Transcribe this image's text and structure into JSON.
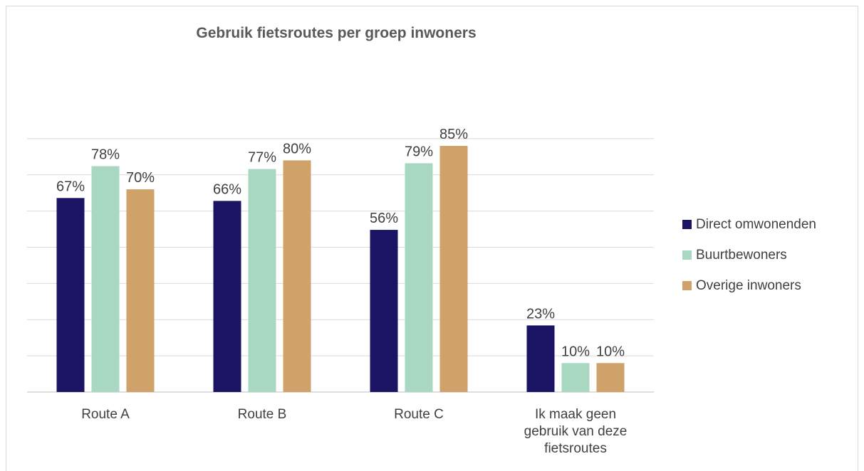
{
  "chart_data": {
    "type": "bar",
    "title": "Gebruik fietsroutes per groep inwoners",
    "categories": [
      [
        "Route A"
      ],
      [
        "Route B"
      ],
      [
        "Route C"
      ],
      [
        "Ik maak geen",
        "gebruik van deze",
        "fietsroutes"
      ]
    ],
    "series": [
      {
        "name": "Direct omwonenden",
        "color": "#1b1464",
        "values": [
          67,
          66,
          56,
          23
        ]
      },
      {
        "name": "Buurtbewoners",
        "color": "#a8d8c2",
        "values": [
          78,
          77,
          79,
          10
        ]
      },
      {
        "name": "Overige inwoners",
        "color": "#cfa269",
        "values": [
          70,
          80,
          85,
          10
        ]
      }
    ],
    "value_suffix": "%",
    "ylim": [
      0,
      90
    ],
    "grid": true,
    "legend": "right"
  }
}
